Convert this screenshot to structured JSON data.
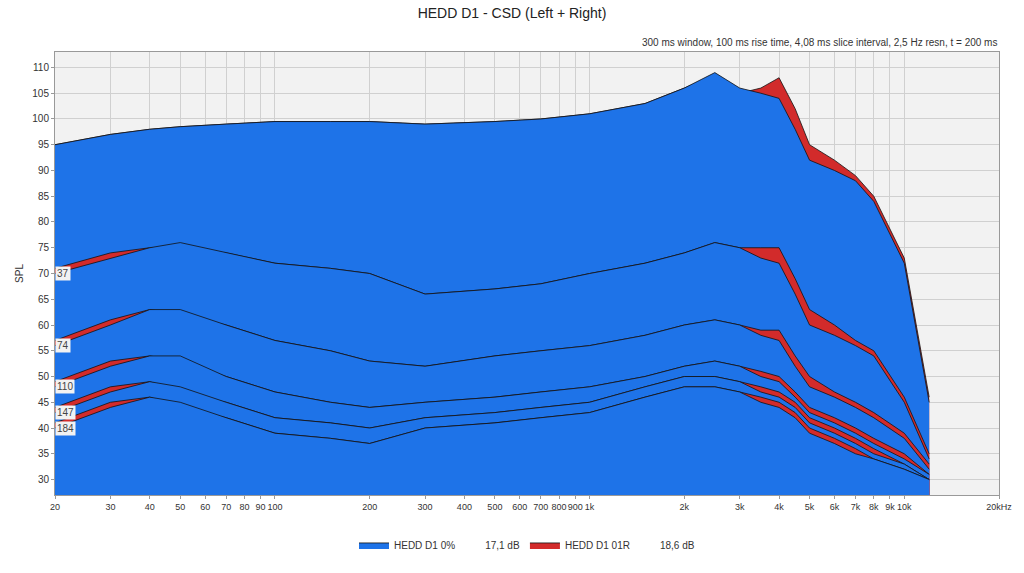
{
  "chart_data": {
    "type": "waterfall",
    "title": "HEDD D1 - CSD (Left + Right)",
    "ylabel": "SPL",
    "annotations": [
      "300 ms window, 100 ms rise time, 4,08 ms slice interval, 2,5 Hz resn, t = 200 ms"
    ],
    "log": "x",
    "grid": true,
    "legend": "bottom",
    "xlim": [
      20,
      20000
    ],
    "xticks": [
      20,
      30,
      40,
      50,
      60,
      70,
      80,
      90,
      100,
      200,
      300,
      400,
      500,
      600,
      700,
      800,
      900,
      {
        "value": 1000,
        "label": "1k"
      },
      {
        "value": 2000,
        "label": "2k"
      },
      {
        "value": 3000,
        "label": "3k"
      },
      {
        "value": 4000,
        "label": "4k"
      },
      {
        "value": 5000,
        "label": "5k"
      },
      {
        "value": 6000,
        "label": "6k"
      },
      {
        "value": 7000,
        "label": "7k"
      },
      {
        "value": 8000,
        "label": "8k"
      },
      {
        "value": 9000,
        "label": "9k"
      },
      {
        "value": 10000,
        "label": "10k"
      },
      {
        "value": 20000,
        "label": "20kHz"
      }
    ],
    "ylim": [
      27,
      113
    ],
    "yticks": [
      30,
      35,
      40,
      45,
      50,
      55,
      60,
      65,
      70,
      75,
      80,
      85,
      90,
      95,
      100,
      105,
      110
    ],
    "zticks": [
      37,
      74,
      110,
      147,
      184
    ],
    "slices": [
      0,
      37,
      74,
      110,
      147,
      184
    ],
    "x": [
      20,
      30,
      40,
      50,
      70,
      100,
      150,
      200,
      300,
      500,
      700,
      1000,
      1500,
      2000,
      2500,
      3000,
      3500,
      4000,
      4500,
      5000,
      6000,
      7000,
      8000,
      10000,
      12000
    ],
    "series": [
      {
        "name": "HEDD D1 0%",
        "note": "17,1 dB",
        "color": "#1e73e8",
        "values": [
          [
            95,
            97,
            98,
            98.5,
            99,
            99.5,
            99.5,
            99.5,
            99,
            99.5,
            100,
            101,
            103,
            106,
            109,
            106,
            105,
            104,
            98,
            92,
            90,
            88,
            84,
            72,
            45
          ],
          [
            70,
            73,
            75,
            76,
            74,
            72,
            71,
            70,
            66,
            67,
            68,
            70,
            72,
            74,
            76,
            75,
            73,
            72,
            66,
            60,
            58,
            56,
            54,
            45,
            34
          ],
          [
            56,
            60,
            63,
            63,
            60,
            57,
            55,
            53,
            52,
            54,
            55,
            56,
            58,
            60,
            61,
            60,
            58,
            57,
            52,
            48,
            46,
            44,
            42,
            38,
            32
          ],
          [
            48,
            52,
            54,
            54,
            50,
            47,
            45,
            44,
            45,
            46,
            47,
            48,
            50,
            52,
            53,
            52,
            50,
            49,
            46,
            43,
            41,
            39,
            37,
            34,
            31
          ],
          [
            43,
            47,
            49,
            48,
            45,
            42,
            41,
            40,
            42,
            43,
            44,
            45,
            48,
            50,
            50,
            49,
            47,
            46,
            44,
            41,
            39,
            37,
            35,
            33,
            30
          ],
          [
            40,
            44,
            46,
            45,
            42,
            39,
            38,
            37,
            40,
            41,
            42,
            43,
            46,
            48,
            48,
            47,
            45,
            44,
            42,
            39,
            37,
            35,
            34,
            32,
            30
          ]
        ]
      },
      {
        "name": "HEDD D1 01R",
        "note": "18,6 dB",
        "color": "#d22b2b",
        "values": [
          [
            95,
            97,
            98,
            98.5,
            99,
            99.5,
            99.5,
            99.5,
            99,
            99.5,
            100,
            101,
            103,
            106,
            108.5,
            105,
            106,
            108,
            102,
            95,
            92,
            89,
            85,
            73,
            46
          ],
          [
            71,
            74,
            75,
            75,
            74,
            72,
            71,
            70,
            66,
            67,
            68,
            70,
            72,
            74,
            76,
            75,
            75,
            75,
            69,
            63,
            60,
            57,
            55,
            46,
            35
          ],
          [
            57,
            61,
            63,
            62,
            60,
            57,
            55,
            53,
            52,
            54,
            55,
            56,
            58,
            60,
            61,
            60,
            59,
            59,
            54,
            50,
            47,
            45,
            43,
            39,
            33
          ],
          [
            49,
            53,
            54,
            53,
            50,
            47,
            45,
            44,
            45,
            46,
            47,
            48,
            50,
            52,
            53,
            52,
            51,
            50,
            47,
            44,
            42,
            40,
            38,
            35,
            31
          ],
          [
            44,
            48,
            49,
            47,
            45,
            42,
            41,
            40,
            42,
            43,
            44,
            45,
            48,
            50,
            50,
            49,
            48,
            47,
            45,
            42,
            40,
            38,
            36,
            33,
            30
          ],
          [
            41,
            45,
            46,
            44,
            42,
            39,
            38,
            37,
            40,
            41,
            42,
            43,
            46,
            48,
            48,
            47,
            46,
            45,
            43,
            40,
            38,
            36,
            34,
            32,
            30
          ]
        ]
      }
    ]
  }
}
